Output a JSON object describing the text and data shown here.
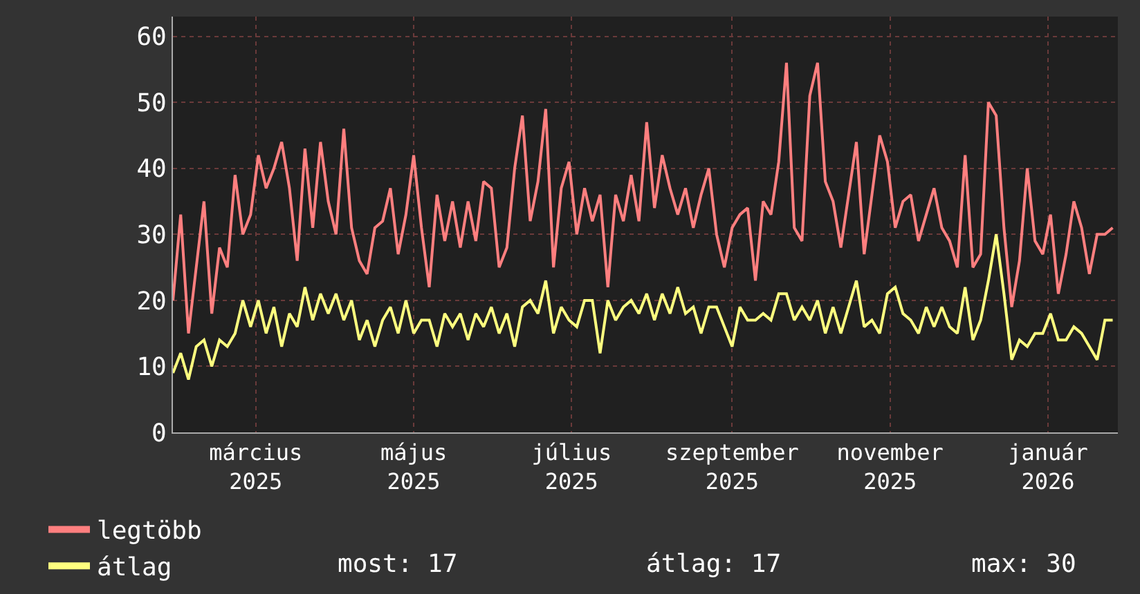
{
  "chart_data": {
    "type": "line",
    "x": [
      "2025-01-28",
      "2025-01-31",
      "2025-02-03",
      "2025-02-06",
      "2025-02-09",
      "2025-02-12",
      "2025-02-15",
      "2025-02-18",
      "2025-02-21",
      "2025-02-24",
      "2025-02-27",
      "2025-03-02",
      "2025-03-05",
      "2025-03-08",
      "2025-03-11",
      "2025-03-14",
      "2025-03-17",
      "2025-03-20",
      "2025-03-23",
      "2025-03-26",
      "2025-03-29",
      "2025-04-01",
      "2025-04-04",
      "2025-04-07",
      "2025-04-10",
      "2025-04-13",
      "2025-04-16",
      "2025-04-19",
      "2025-04-22",
      "2025-04-25",
      "2025-04-28",
      "2025-05-01",
      "2025-05-04",
      "2025-05-07",
      "2025-05-10",
      "2025-05-13",
      "2025-05-16",
      "2025-05-19",
      "2025-05-22",
      "2025-05-25",
      "2025-05-28",
      "2025-05-31",
      "2025-06-03",
      "2025-06-06",
      "2025-06-09",
      "2025-06-12",
      "2025-06-15",
      "2025-06-18",
      "2025-06-21",
      "2025-06-24",
      "2025-06-27",
      "2025-06-30",
      "2025-07-03",
      "2025-07-06",
      "2025-07-09",
      "2025-07-12",
      "2025-07-15",
      "2025-07-18",
      "2025-07-21",
      "2025-07-24",
      "2025-07-27",
      "2025-07-30",
      "2025-08-02",
      "2025-08-05",
      "2025-08-08",
      "2025-08-11",
      "2025-08-14",
      "2025-08-17",
      "2025-08-20",
      "2025-08-23",
      "2025-08-26",
      "2025-08-29",
      "2025-09-01",
      "2025-09-04",
      "2025-09-07",
      "2025-09-10",
      "2025-09-13",
      "2025-09-16",
      "2025-09-19",
      "2025-09-22",
      "2025-09-25",
      "2025-09-28",
      "2025-10-01",
      "2025-10-04",
      "2025-10-07",
      "2025-10-10",
      "2025-10-13",
      "2025-10-16",
      "2025-10-19",
      "2025-10-22",
      "2025-10-25",
      "2025-10-28",
      "2025-10-31",
      "2025-11-03",
      "2025-11-06",
      "2025-11-09",
      "2025-11-12",
      "2025-11-15",
      "2025-11-18",
      "2025-11-21",
      "2025-11-24",
      "2025-11-27",
      "2025-11-30",
      "2025-12-03",
      "2025-12-06",
      "2025-12-09",
      "2025-12-12",
      "2025-12-15",
      "2025-12-18",
      "2025-12-21",
      "2025-12-24",
      "2025-12-27",
      "2025-12-30",
      "2026-01-02",
      "2026-01-05",
      "2026-01-08",
      "2026-01-11",
      "2026-01-14",
      "2026-01-17",
      "2026-01-20",
      "2026-01-23",
      "2026-01-26"
    ],
    "series": [
      {
        "name": "legtöbb",
        "color": "#ff7f7f",
        "values": [
          20,
          33,
          15,
          25,
          35,
          18,
          28,
          25,
          39,
          30,
          33,
          42,
          37,
          40,
          44,
          37,
          26,
          43,
          31,
          44,
          35,
          30,
          46,
          31,
          26,
          24,
          31,
          32,
          37,
          27,
          33,
          42,
          31,
          22,
          36,
          29,
          35,
          28,
          35,
          29,
          38,
          37,
          25,
          28,
          40,
          48,
          32,
          38,
          49,
          25,
          37,
          41,
          30,
          37,
          32,
          36,
          22,
          36,
          32,
          39,
          32,
          47,
          34,
          42,
          37,
          33,
          37,
          31,
          36,
          40,
          30,
          25,
          31,
          33,
          34,
          23,
          35,
          33,
          41,
          56,
          31,
          29,
          51,
          56,
          38,
          35,
          28,
          36,
          44,
          27,
          36,
          45,
          41,
          31,
          35,
          36,
          29,
          33,
          37,
          31,
          29,
          25,
          42,
          25,
          27,
          50,
          48,
          31,
          19,
          26,
          40,
          29,
          27,
          33,
          21,
          27,
          35,
          31,
          24,
          30,
          30,
          31
        ]
      },
      {
        "name": "átlag",
        "color": "#ffff7f",
        "values": [
          9,
          12,
          8,
          13,
          14,
          10,
          14,
          13,
          15,
          20,
          16,
          20,
          15,
          19,
          13,
          18,
          16,
          22,
          17,
          21,
          18,
          21,
          17,
          20,
          14,
          17,
          13,
          17,
          19,
          15,
          20,
          15,
          17,
          17,
          13,
          18,
          16,
          18,
          14,
          18,
          16,
          19,
          15,
          18,
          13,
          19,
          20,
          18,
          23,
          15,
          19,
          17,
          16,
          20,
          20,
          12,
          20,
          17,
          19,
          20,
          18,
          21,
          17,
          21,
          18,
          22,
          18,
          19,
          15,
          19,
          19,
          16,
          13,
          19,
          17,
          17,
          18,
          17,
          21,
          21,
          17,
          19,
          17,
          20,
          15,
          19,
          15,
          19,
          23,
          16,
          17,
          15,
          21,
          22,
          18,
          17,
          15,
          19,
          16,
          19,
          16,
          15,
          22,
          14,
          17,
          23,
          30,
          21,
          11,
          14,
          13,
          15,
          15,
          18,
          14,
          14,
          16,
          15,
          13,
          11,
          17,
          17
        ]
      }
    ],
    "xlim": [
      "2025-01-28",
      "2026-01-28"
    ],
    "xticks": [
      {
        "value": "2025-03-01",
        "label": "március 2025"
      },
      {
        "value": "2025-05-01",
        "label": "május 2025"
      },
      {
        "value": "2025-07-01",
        "label": "július 2025"
      },
      {
        "value": "2025-09-01",
        "label": "szeptember 2025"
      },
      {
        "value": "2025-11-01",
        "label": "november 2025"
      },
      {
        "value": "2026-01-01",
        "label": "január 2026"
      }
    ],
    "ylim": [
      0,
      63
    ],
    "yticks": [
      0,
      10,
      20,
      30,
      40,
      50,
      60
    ],
    "annotations": [
      "most: 17",
      "átlag: 17",
      "max: 30"
    ],
    "grid": true,
    "legend": "bottom",
    "marker": "none",
    "line_style": "solid"
  }
}
